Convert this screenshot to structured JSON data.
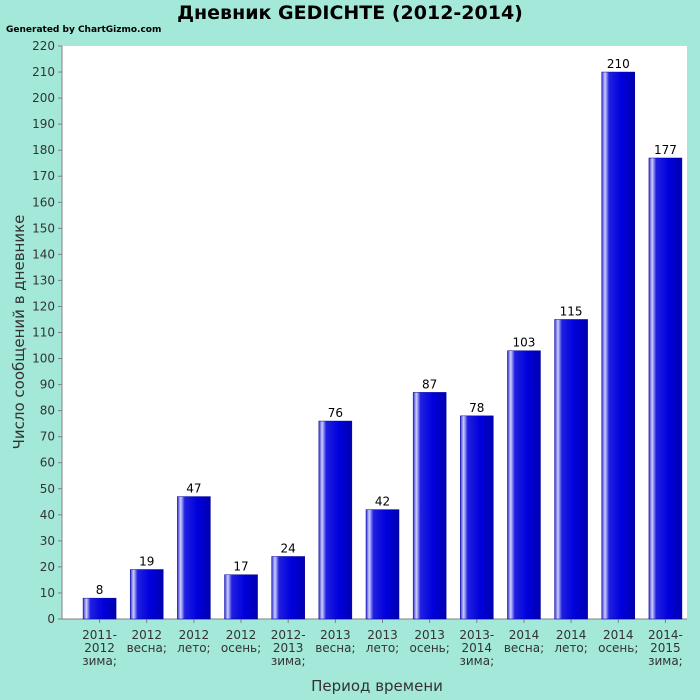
{
  "header": {
    "title": "Дневник GEDICHTE (2012-2014)",
    "credit": "Generated by ChartGizmo.com"
  },
  "colors": {
    "background": "#a3e8d8",
    "plot_background": "#ffffff",
    "bar": "#0000dd",
    "bar_highlight": "#b0b0ff",
    "bar_dark": "#00009a"
  },
  "chart_data": {
    "type": "bar",
    "title": "Дневник GEDICHTE (2012-2014)",
    "xlabel": "Период времени",
    "ylabel": "Число сообщений в дневнике",
    "ylim": [
      0,
      220
    ],
    "yticks": [
      0,
      10,
      20,
      30,
      40,
      50,
      60,
      70,
      80,
      90,
      100,
      110,
      120,
      130,
      140,
      150,
      160,
      170,
      180,
      190,
      200,
      210,
      220
    ],
    "grid": false,
    "categories": [
      [
        "2011-",
        "2012",
        "зима;"
      ],
      [
        "2012",
        "весна;"
      ],
      [
        "2012",
        "лето;"
      ],
      [
        "2012",
        "осень;"
      ],
      [
        "2012-",
        "2013",
        "зима;"
      ],
      [
        "2013",
        "весна;"
      ],
      [
        "2013",
        "лето;"
      ],
      [
        "2013",
        "осень;"
      ],
      [
        "2013-",
        "2014",
        "зима;"
      ],
      [
        "2014",
        "весна;"
      ],
      [
        "2014",
        "лето;"
      ],
      [
        "2014",
        "осень;"
      ],
      [
        "2014-",
        "2015",
        "зима;"
      ]
    ],
    "values": [
      8,
      19,
      47,
      17,
      24,
      76,
      42,
      87,
      78,
      103,
      115,
      210,
      177
    ]
  }
}
